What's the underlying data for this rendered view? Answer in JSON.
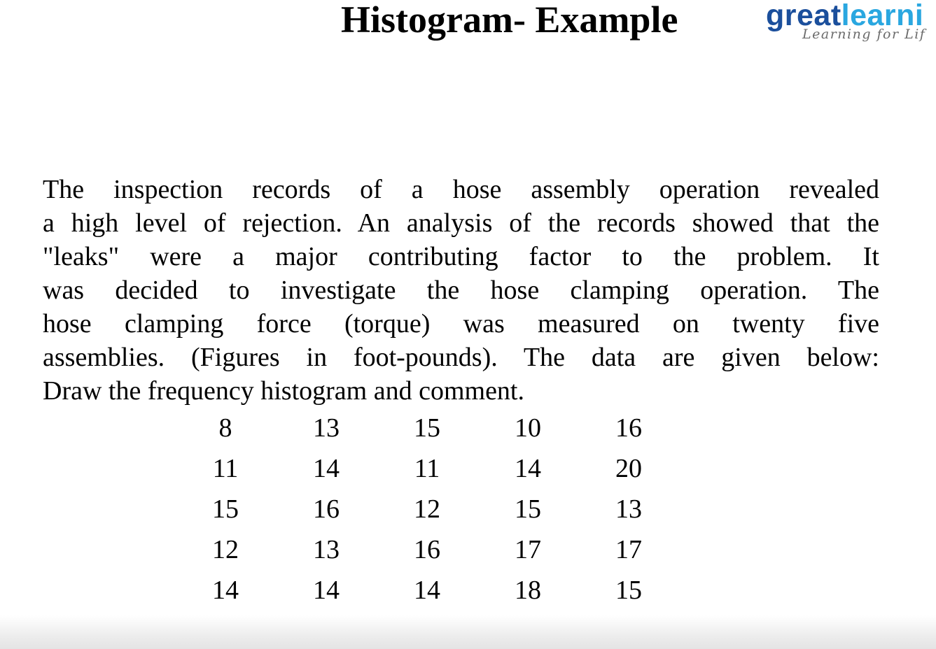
{
  "slide": {
    "title": "Histogram- Example",
    "logo": {
      "brand_part1": "great",
      "brand_part2": "learni",
      "tagline": "Learning for Lif",
      "colors": {
        "great": "#1b4f9c",
        "learning": "#2aa7e0",
        "tagline": "#6b6b6b"
      }
    },
    "paragraph_lines": [
      "The inspection records of a hose assembly operation revealed",
      "a high level of rejection. An analysis of the records showed that the",
      "\"leaks\" were a major contributing factor to the problem. It",
      "was decided to investigate the hose clamping operation. The",
      "hose clamping force (torque) was measured on twenty five",
      "assemblies. (Figures in foot-pounds). The data are given below:",
      "Draw  the frequency histogram and comment."
    ],
    "data_rows": [
      [
        "8",
        "13",
        "15",
        "10",
        "16"
      ],
      [
        "11",
        "14",
        "11",
        "14",
        "20"
      ],
      [
        "15",
        "16",
        "12",
        "15",
        "13"
      ],
      [
        "12",
        "13",
        "16",
        "17",
        "17"
      ],
      [
        "14",
        "14",
        "14",
        "18",
        "15"
      ]
    ]
  }
}
